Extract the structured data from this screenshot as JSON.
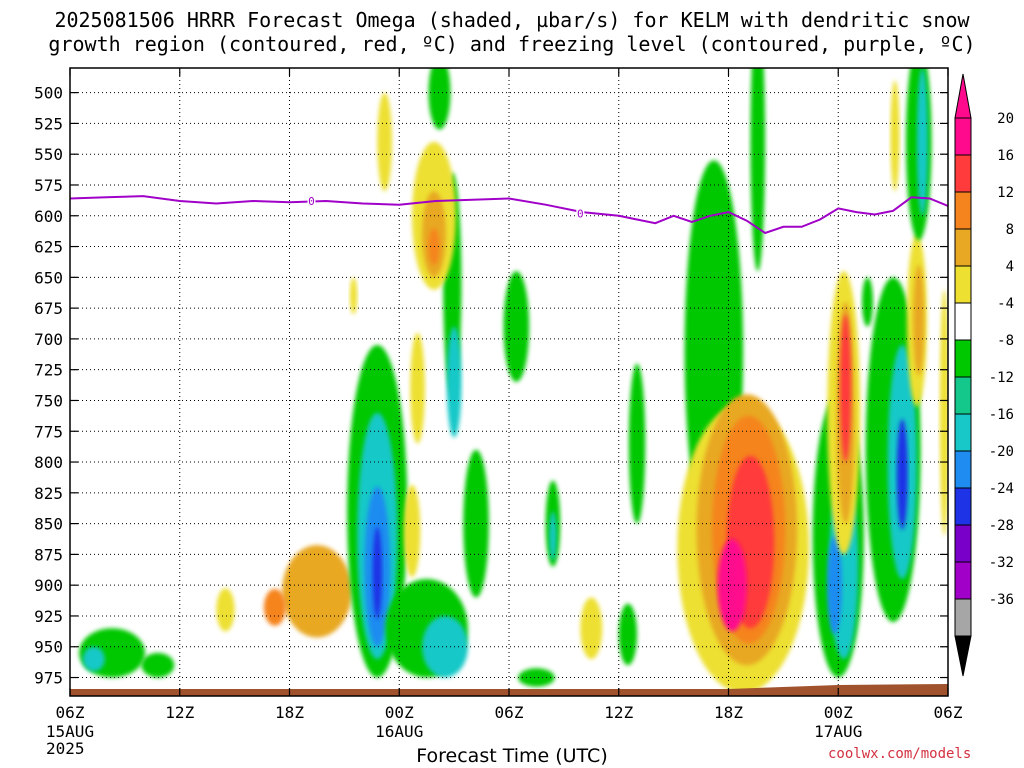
{
  "title": {
    "line1": "2025081506 HRRR Forecast Omega (shaded, µbar/s) for KELM with dendritic snow",
    "line2": "growth region (contoured, red, ºC) and freezing level (contoured, purple, ºC)"
  },
  "footer": {
    "year": "2025",
    "credit": "coolwx.com/models"
  },
  "chart_data": {
    "type": "heatmap",
    "title": "2025081506 HRRR Forecast Omega (shaded, µbar/s) for KELM with dendritic snow growth region (contoured, red, ºC) and freezing level (contoured, purple, ºC)",
    "xlabel": "Forecast Time (UTC)",
    "ylabel": "",
    "x_range_hours": [
      0,
      48
    ],
    "y_range_hPa": [
      480,
      990
    ],
    "grid": true,
    "x_ticks": [
      {
        "hour": 0,
        "label": "06Z",
        "sub": "15AUG"
      },
      {
        "hour": 6,
        "label": "12Z",
        "sub": ""
      },
      {
        "hour": 12,
        "label": "18Z",
        "sub": ""
      },
      {
        "hour": 18,
        "label": "00Z",
        "sub": "16AUG"
      },
      {
        "hour": 24,
        "label": "06Z",
        "sub": ""
      },
      {
        "hour": 30,
        "label": "12Z",
        "sub": ""
      },
      {
        "hour": 36,
        "label": "18Z",
        "sub": ""
      },
      {
        "hour": 42,
        "label": "00Z",
        "sub": "17AUG"
      },
      {
        "hour": 48,
        "label": "06Z",
        "sub": ""
      }
    ],
    "y_ticks": [
      500,
      525,
      550,
      575,
      600,
      625,
      650,
      675,
      700,
      725,
      750,
      775,
      800,
      825,
      850,
      875,
      900,
      925,
      950,
      975
    ],
    "colorbar": {
      "labels": [
        "20",
        "16",
        "12",
        "8",
        "4",
        "-4",
        "-8",
        "-12",
        "-16",
        "-20",
        "-24",
        "-28",
        "-32",
        "-36"
      ],
      "colors": [
        "#ff0a8c",
        "#ff3b3b",
        "#f5841f",
        "#e8a824",
        "#ede030",
        "#ffffff",
        "#00c800",
        "#14c88c",
        "#18c8c8",
        "#1e8cf0",
        "#1e32e6",
        "#7800c8",
        "#a000c8",
        "#a6a6a6"
      ],
      "top_color": "#ff0a8c",
      "bottom_color": "#000000"
    },
    "freezing_level": {
      "label": "0",
      "color": "#a000c8",
      "points": [
        [
          0,
          586
        ],
        [
          2,
          585
        ],
        [
          4,
          584
        ],
        [
          6,
          588
        ],
        [
          8,
          590
        ],
        [
          10,
          588
        ],
        [
          12,
          589
        ],
        [
          14,
          588
        ],
        [
          16,
          590
        ],
        [
          18,
          591
        ],
        [
          20,
          588
        ],
        [
          22,
          587
        ],
        [
          24,
          586
        ],
        [
          26,
          591
        ],
        [
          28,
          597
        ],
        [
          30,
          600
        ],
        [
          31,
          603
        ],
        [
          32,
          606
        ],
        [
          33,
          600
        ],
        [
          34,
          605
        ],
        [
          35,
          600
        ],
        [
          36,
          597
        ],
        [
          37,
          604
        ],
        [
          38,
          614
        ],
        [
          39,
          609
        ],
        [
          40,
          609
        ],
        [
          41,
          603
        ],
        [
          42,
          594
        ],
        [
          43,
          597
        ],
        [
          44,
          599
        ],
        [
          45,
          596
        ],
        [
          46,
          585
        ],
        [
          47,
          586
        ],
        [
          48,
          592
        ]
      ]
    },
    "omega_cells": [
      {
        "hour": 13.5,
        "hPa": 905,
        "w": 3.8,
        "h": 75,
        "value": 9
      },
      {
        "hour": 11.2,
        "hPa": 918,
        "w": 1.2,
        "h": 30,
        "value": 13
      },
      {
        "hour": 8.5,
        "hPa": 920,
        "w": 1.0,
        "h": 35,
        "value": 5
      },
      {
        "hour": 2.3,
        "hPa": 955,
        "w": 3.6,
        "h": 40,
        "value": -6
      },
      {
        "hour": 1.3,
        "hPa": 960,
        "w": 1.2,
        "h": 20,
        "value": -13
      },
      {
        "hour": 4.8,
        "hPa": 965,
        "w": 1.8,
        "h": 20,
        "value": -6
      },
      {
        "hour": 16.8,
        "hPa": 840,
        "w": 3.3,
        "h": 270,
        "value": -7
      },
      {
        "hour": 16.8,
        "hPa": 860,
        "w": 2.2,
        "h": 200,
        "value": -12
      },
      {
        "hour": 16.8,
        "hPa": 885,
        "w": 1.4,
        "h": 130,
        "value": -17
      },
      {
        "hour": 16.8,
        "hPa": 890,
        "w": 0.5,
        "h": 75,
        "value": -22
      },
      {
        "hour": 19.5,
        "hPa": 935,
        "w": 4.5,
        "h": 80,
        "value": -6
      },
      {
        "hour": 20.5,
        "hPa": 950,
        "w": 2.5,
        "h": 50,
        "value": -13
      },
      {
        "hour": 18.7,
        "hPa": 856,
        "w": 0.9,
        "h": 75,
        "value": 6
      },
      {
        "hour": 22.2,
        "hPa": 850,
        "w": 1.4,
        "h": 120,
        "value": -6
      },
      {
        "hour": 24.4,
        "hPa": 690,
        "w": 1.4,
        "h": 90,
        "value": -6
      },
      {
        "hour": 20.9,
        "hPa": 655,
        "w": 1.0,
        "h": 180,
        "value": -6
      },
      {
        "hour": 19.0,
        "hPa": 740,
        "w": 0.8,
        "h": 90,
        "value": 6
      },
      {
        "hour": 21.0,
        "hPa": 735,
        "w": 0.8,
        "h": 90,
        "value": -12
      },
      {
        "hour": 19.9,
        "hPa": 600,
        "w": 2.4,
        "h": 120,
        "value": 6
      },
      {
        "hour": 19.9,
        "hPa": 615,
        "w": 1.3,
        "h": 70,
        "value": 9
      },
      {
        "hour": 19.9,
        "hPa": 625,
        "w": 0.6,
        "h": 30,
        "value": 13
      },
      {
        "hour": 17.2,
        "hPa": 540,
        "w": 0.8,
        "h": 80,
        "value": 6
      },
      {
        "hour": 20.2,
        "hPa": 500,
        "w": 1.2,
        "h": 60,
        "value": -6
      },
      {
        "hour": 15.5,
        "hPa": 665,
        "w": 0.4,
        "h": 30,
        "value": 6
      },
      {
        "hour": 26.4,
        "hPa": 850,
        "w": 0.8,
        "h": 70,
        "value": -7
      },
      {
        "hour": 26.4,
        "hPa": 860,
        "w": 0.4,
        "h": 40,
        "value": -13
      },
      {
        "hour": 28.5,
        "hPa": 935,
        "w": 1.2,
        "h": 50,
        "value": 6
      },
      {
        "hour": 30.5,
        "hPa": 940,
        "w": 1.0,
        "h": 50,
        "value": -7
      },
      {
        "hour": 31.0,
        "hPa": 785,
        "w": 0.9,
        "h": 130,
        "value": -6
      },
      {
        "hour": 25.5,
        "hPa": 975,
        "w": 2.0,
        "h": 15,
        "value": -6
      },
      {
        "hour": 35.2,
        "hPa": 710,
        "w": 3.2,
        "h": 310,
        "value": -6
      },
      {
        "hour": 37.6,
        "hPa": 540,
        "w": 0.8,
        "h": 210,
        "value": -6
      },
      {
        "hour": 36.8,
        "hPa": 870,
        "w": 7.2,
        "h": 235,
        "value": 6
      },
      {
        "hour": 37.0,
        "hPa": 855,
        "w": 5.5,
        "h": 220,
        "value": 9
      },
      {
        "hour": 37.1,
        "hPa": 855,
        "w": 4.0,
        "h": 185,
        "value": 12
      },
      {
        "hour": 37.2,
        "hPa": 865,
        "w": 2.6,
        "h": 140,
        "value": 16
      },
      {
        "hour": 36.2,
        "hPa": 900,
        "w": 1.6,
        "h": 75,
        "value": 22
      },
      {
        "hour": 42.0,
        "hPa": 860,
        "w": 2.8,
        "h": 230,
        "value": -7
      },
      {
        "hour": 42.3,
        "hPa": 885,
        "w": 1.6,
        "h": 150,
        "value": -12
      },
      {
        "hour": 41.8,
        "hPa": 900,
        "w": 0.8,
        "h": 80,
        "value": -17
      },
      {
        "hour": 42.3,
        "hPa": 760,
        "w": 1.8,
        "h": 230,
        "value": 6
      },
      {
        "hour": 42.4,
        "hPa": 760,
        "w": 1.0,
        "h": 180,
        "value": 10
      },
      {
        "hour": 42.4,
        "hPa": 740,
        "w": 0.6,
        "h": 120,
        "value": 16
      },
      {
        "hour": 43.6,
        "hPa": 670,
        "w": 0.6,
        "h": 40,
        "value": -6
      },
      {
        "hour": 45.0,
        "hPa": 790,
        "w": 3.0,
        "h": 280,
        "value": -7
      },
      {
        "hour": 45.5,
        "hPa": 800,
        "w": 1.6,
        "h": 190,
        "value": -12
      },
      {
        "hour": 45.5,
        "hPa": 810,
        "w": 0.6,
        "h": 90,
        "value": -20
      },
      {
        "hour": 46.3,
        "hPa": 685,
        "w": 1.1,
        "h": 140,
        "value": 6
      },
      {
        "hour": 46.4,
        "hPa": 685,
        "w": 0.6,
        "h": 90,
        "value": 9
      },
      {
        "hour": 46.4,
        "hPa": 540,
        "w": 1.4,
        "h": 160,
        "value": -6
      },
      {
        "hour": 46.6,
        "hPa": 540,
        "w": 0.6,
        "h": 120,
        "value": -14
      },
      {
        "hour": 45.1,
        "hPa": 535,
        "w": 0.5,
        "h": 90,
        "value": 6
      },
      {
        "hour": 47.8,
        "hPa": 760,
        "w": 0.5,
        "h": 200,
        "value": 5
      }
    ]
  }
}
